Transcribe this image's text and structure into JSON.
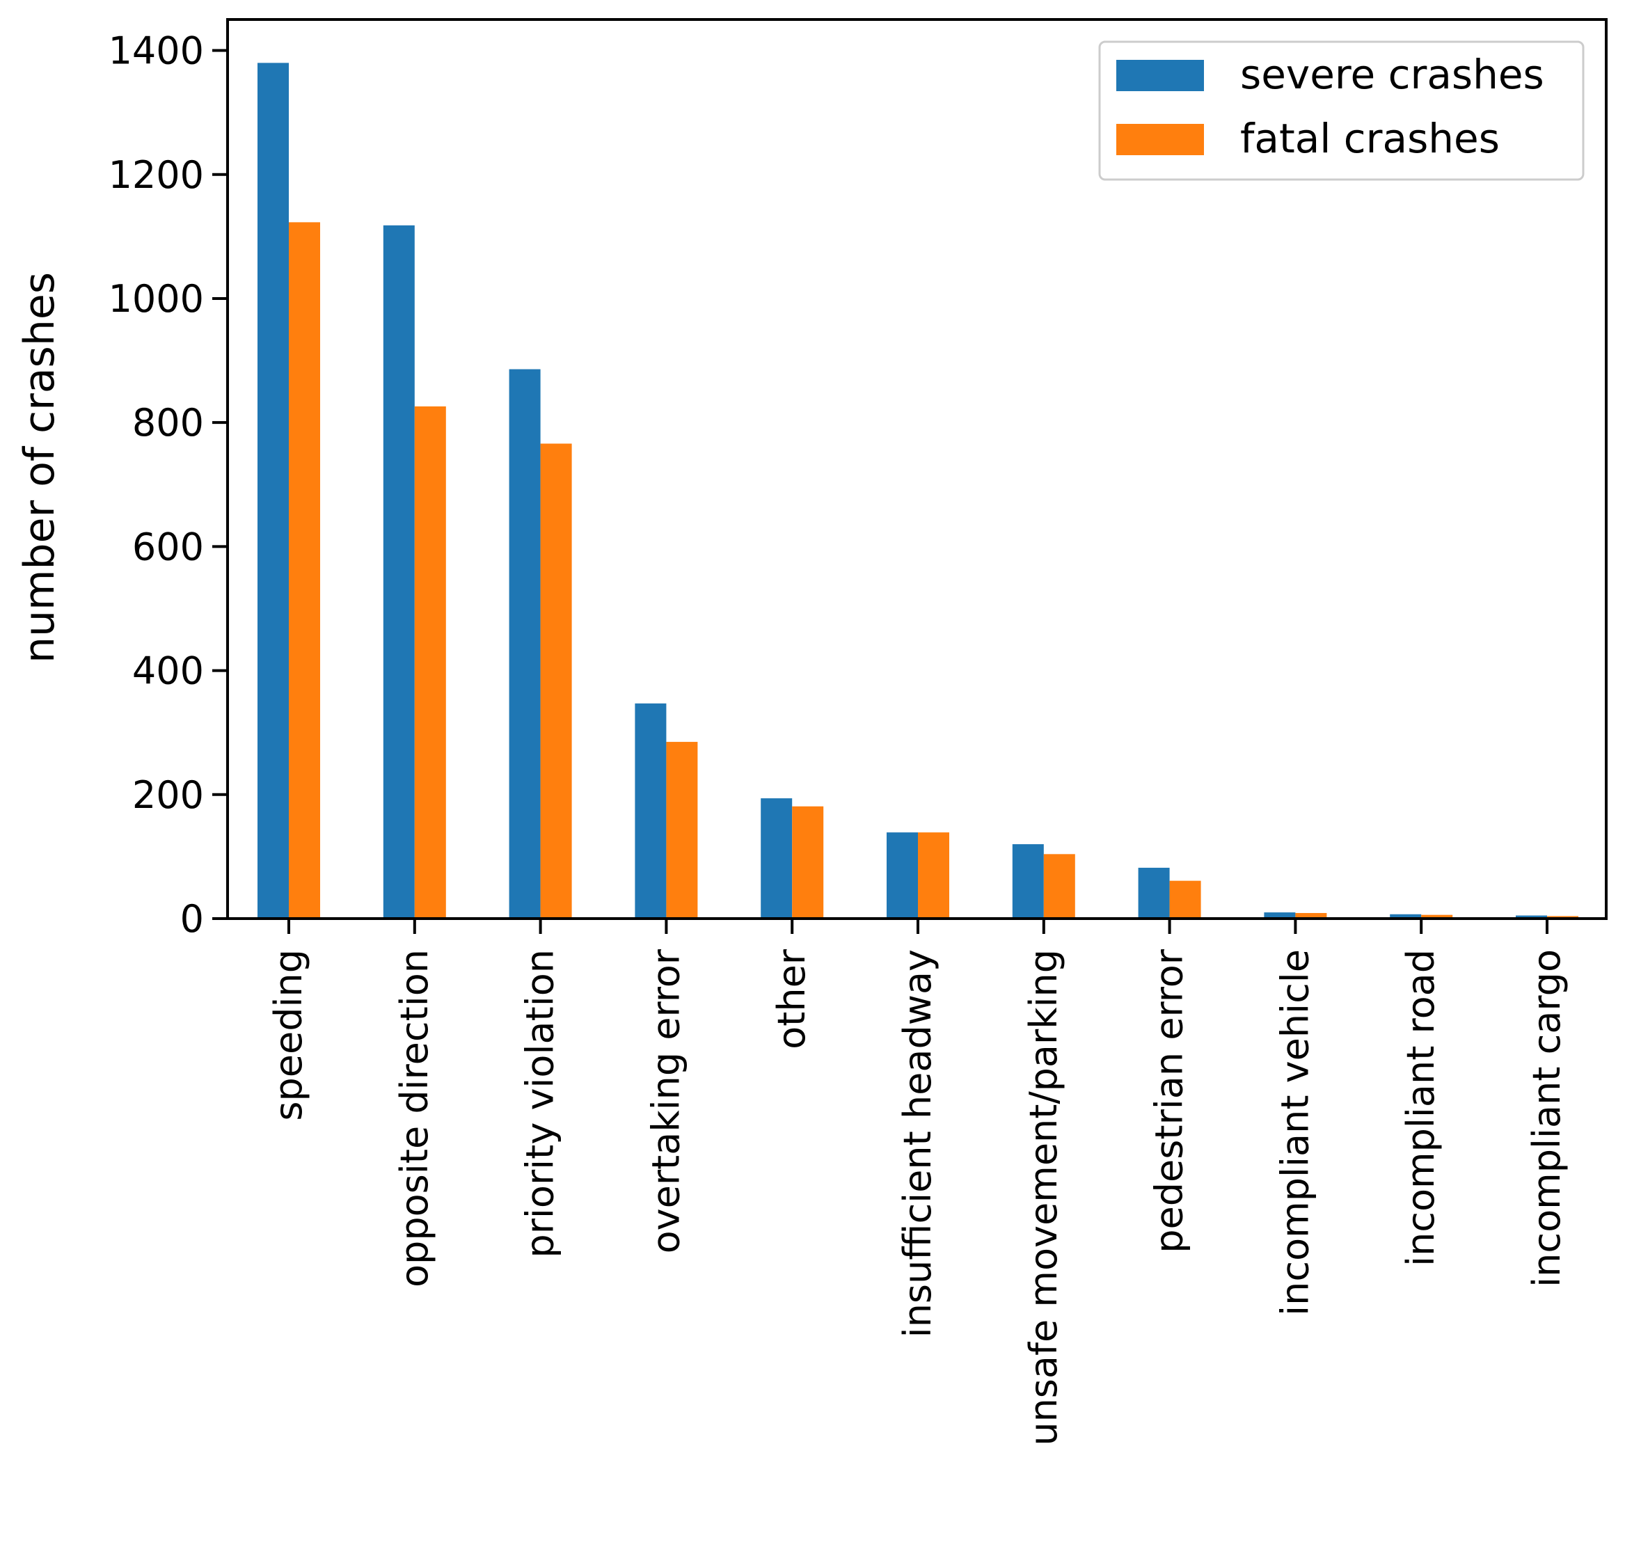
{
  "chart_data": {
    "type": "bar",
    "title": "",
    "xlabel": "",
    "ylabel": "number of crashes",
    "ylim": [
      0,
      1450
    ],
    "yticks": [
      0,
      200,
      400,
      600,
      800,
      1000,
      1200,
      1400
    ],
    "categories": [
      "speeding",
      "opposite direction",
      "priority violation",
      "overtaking error",
      "other",
      "insufficient headway",
      "unsafe movement/parking",
      "pedestrian error",
      "incompliant vehicle",
      "incompliant road",
      "incompliant cargo"
    ],
    "series": [
      {
        "name": "severe crashes",
        "color": "#1f77b4",
        "values": [
          1380,
          1118,
          886,
          347,
          194,
          139,
          120,
          82,
          10,
          7,
          5
        ]
      },
      {
        "name": "fatal crashes",
        "color": "#ff7f0e",
        "values": [
          1123,
          826,
          766,
          285,
          181,
          139,
          104,
          61,
          9,
          6,
          4
        ]
      }
    ],
    "legend_position": "top-right",
    "grid": false
  }
}
